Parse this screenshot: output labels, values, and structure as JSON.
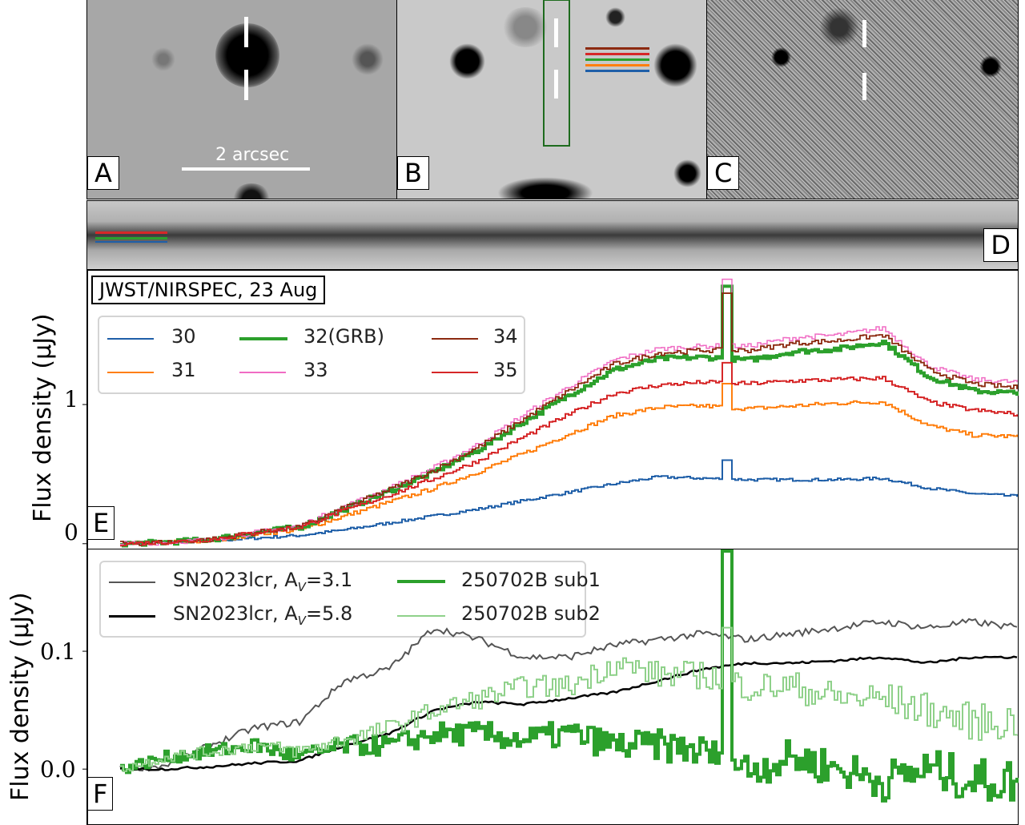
{
  "panels": {
    "A": {
      "label": "A",
      "scale_bar": "2 arcsec"
    },
    "B": {
      "label": "B"
    },
    "C": {
      "label": "C"
    },
    "D": {
      "label": "D"
    },
    "E": {
      "label": "E"
    },
    "F": {
      "label": "F"
    }
  },
  "colors": {
    "30": "#1f5fa8",
    "31": "#ff7f0e",
    "32": "#2ca02c",
    "33": "#f06cc4",
    "34": "#8c2a10",
    "35": "#d62728",
    "sub1": "#2ca02c",
    "sub2": "#8fd18a",
    "av31": "#555555",
    "av58": "#000000"
  },
  "chart_data": [
    {
      "type": "line",
      "panel": "E",
      "title": "JWST/NIRSPEC, 23 Aug",
      "ylabel": "Flux density (μJy)",
      "ylim": [
        -0.03,
        1.95
      ],
      "yticks": [
        "0",
        "1"
      ],
      "ytick_values": [
        0,
        1
      ],
      "legend_placement": "top-left",
      "x": [
        0,
        1,
        2,
        3,
        4,
        5,
        6,
        7,
        8,
        9,
        10,
        11,
        12,
        13,
        14,
        15,
        16,
        17,
        18,
        19,
        20
      ],
      "line_feature_x": 13.5,
      "series": [
        {
          "name": "30",
          "values": [
            0,
            0.01,
            0.02,
            0.04,
            0.06,
            0.1,
            0.15,
            0.2,
            0.25,
            0.31,
            0.37,
            0.43,
            0.48,
            0.47,
            0.46,
            0.46,
            0.46,
            0.47,
            0.4,
            0.36,
            0.34
          ],
          "line_peak": 0.6
        },
        {
          "name": "31",
          "values": [
            0,
            0.01,
            0.02,
            0.07,
            0.1,
            0.2,
            0.3,
            0.4,
            0.52,
            0.65,
            0.79,
            0.92,
            0.98,
            0.99,
            0.97,
            0.99,
            1.01,
            1.02,
            0.85,
            0.78,
            0.77
          ],
          "line_peak": 1.15
        },
        {
          "name": "32(GRB)",
          "values": [
            0,
            0.01,
            0.03,
            0.08,
            0.12,
            0.25,
            0.38,
            0.52,
            0.68,
            0.88,
            1.07,
            1.25,
            1.33,
            1.34,
            1.32,
            1.38,
            1.4,
            1.45,
            1.2,
            1.1,
            1.08
          ],
          "line_peak": 1.85
        },
        {
          "name": "33",
          "values": [
            0,
            0.01,
            0.03,
            0.08,
            0.13,
            0.27,
            0.4,
            0.55,
            0.72,
            0.93,
            1.13,
            1.32,
            1.4,
            1.42,
            1.42,
            1.48,
            1.5,
            1.55,
            1.28,
            1.18,
            1.16
          ],
          "line_peak": 1.9
        },
        {
          "name": "34",
          "values": [
            0,
            0.01,
            0.03,
            0.08,
            0.12,
            0.26,
            0.39,
            0.53,
            0.7,
            0.9,
            1.1,
            1.29,
            1.37,
            1.39,
            1.39,
            1.44,
            1.46,
            1.5,
            1.25,
            1.15,
            1.12
          ],
          "line_peak": 1.8
        },
        {
          "name": "35",
          "values": [
            0,
            0.01,
            0.03,
            0.08,
            0.12,
            0.24,
            0.35,
            0.47,
            0.6,
            0.77,
            0.93,
            1.08,
            1.14,
            1.16,
            1.15,
            1.17,
            1.18,
            1.19,
            1.02,
            0.96,
            0.93
          ],
          "line_peak": 1.3
        }
      ]
    },
    {
      "type": "line",
      "panel": "F",
      "ylabel": "Flux density (μJy)",
      "ylim": [
        -0.042,
        0.185
      ],
      "yticks": [
        "0.0",
        "0.1"
      ],
      "ytick_values": [
        0,
        0.1
      ],
      "legend_placement": "top-left",
      "x": [
        0,
        1,
        2,
        3,
        4,
        5,
        6,
        7,
        8,
        9,
        10,
        11,
        12,
        13,
        14,
        15,
        16,
        17,
        18,
        19,
        20
      ],
      "line_feature_x": 13.5,
      "series": [
        {
          "name": "SN2023lcr, A_V=3.1",
          "label_main": "SN2023lcr, A",
          "label_sub": "V",
          "label_tail": "=3.1",
          "values": [
            0,
            0.003,
            0.02,
            0.035,
            0.04,
            0.075,
            0.085,
            0.12,
            0.11,
            0.095,
            0.095,
            0.105,
            0.11,
            0.115,
            0.11,
            0.115,
            0.12,
            0.125,
            0.12,
            0.125,
            0.12
          ]
        },
        {
          "name": "SN2023lcr, A_V=5.8",
          "label_main": "SN2023lcr, A",
          "label_sub": "V",
          "label_tail": "=5.8",
          "values": [
            0,
            0,
            0.002,
            0.005,
            0.007,
            0.02,
            0.03,
            0.05,
            0.057,
            0.055,
            0.06,
            0.065,
            0.075,
            0.085,
            0.09,
            0.09,
            0.092,
            0.095,
            0.09,
            0.095,
            0.095
          ]
        },
        {
          "name": "250702B sub1",
          "values": [
            0,
            0.01,
            0.015,
            0.02,
            0.01,
            0.02,
            0.02,
            0.03,
            0.03,
            0.025,
            0.03,
            0.02,
            0.02,
            0.015,
            0.0,
            0.01,
            0.0,
            -0.01,
            0.0,
            -0.01,
            -0.01
          ],
          "line_peak": 0.19
        },
        {
          "name": "250702B sub2",
          "values": [
            0,
            0.01,
            0.015,
            0.02,
            0.015,
            0.025,
            0.035,
            0.05,
            0.06,
            0.07,
            0.07,
            0.09,
            0.08,
            0.08,
            0.07,
            0.07,
            0.06,
            0.06,
            0.05,
            0.04,
            0.04
          ],
          "line_peak": 0.12
        }
      ]
    }
  ]
}
